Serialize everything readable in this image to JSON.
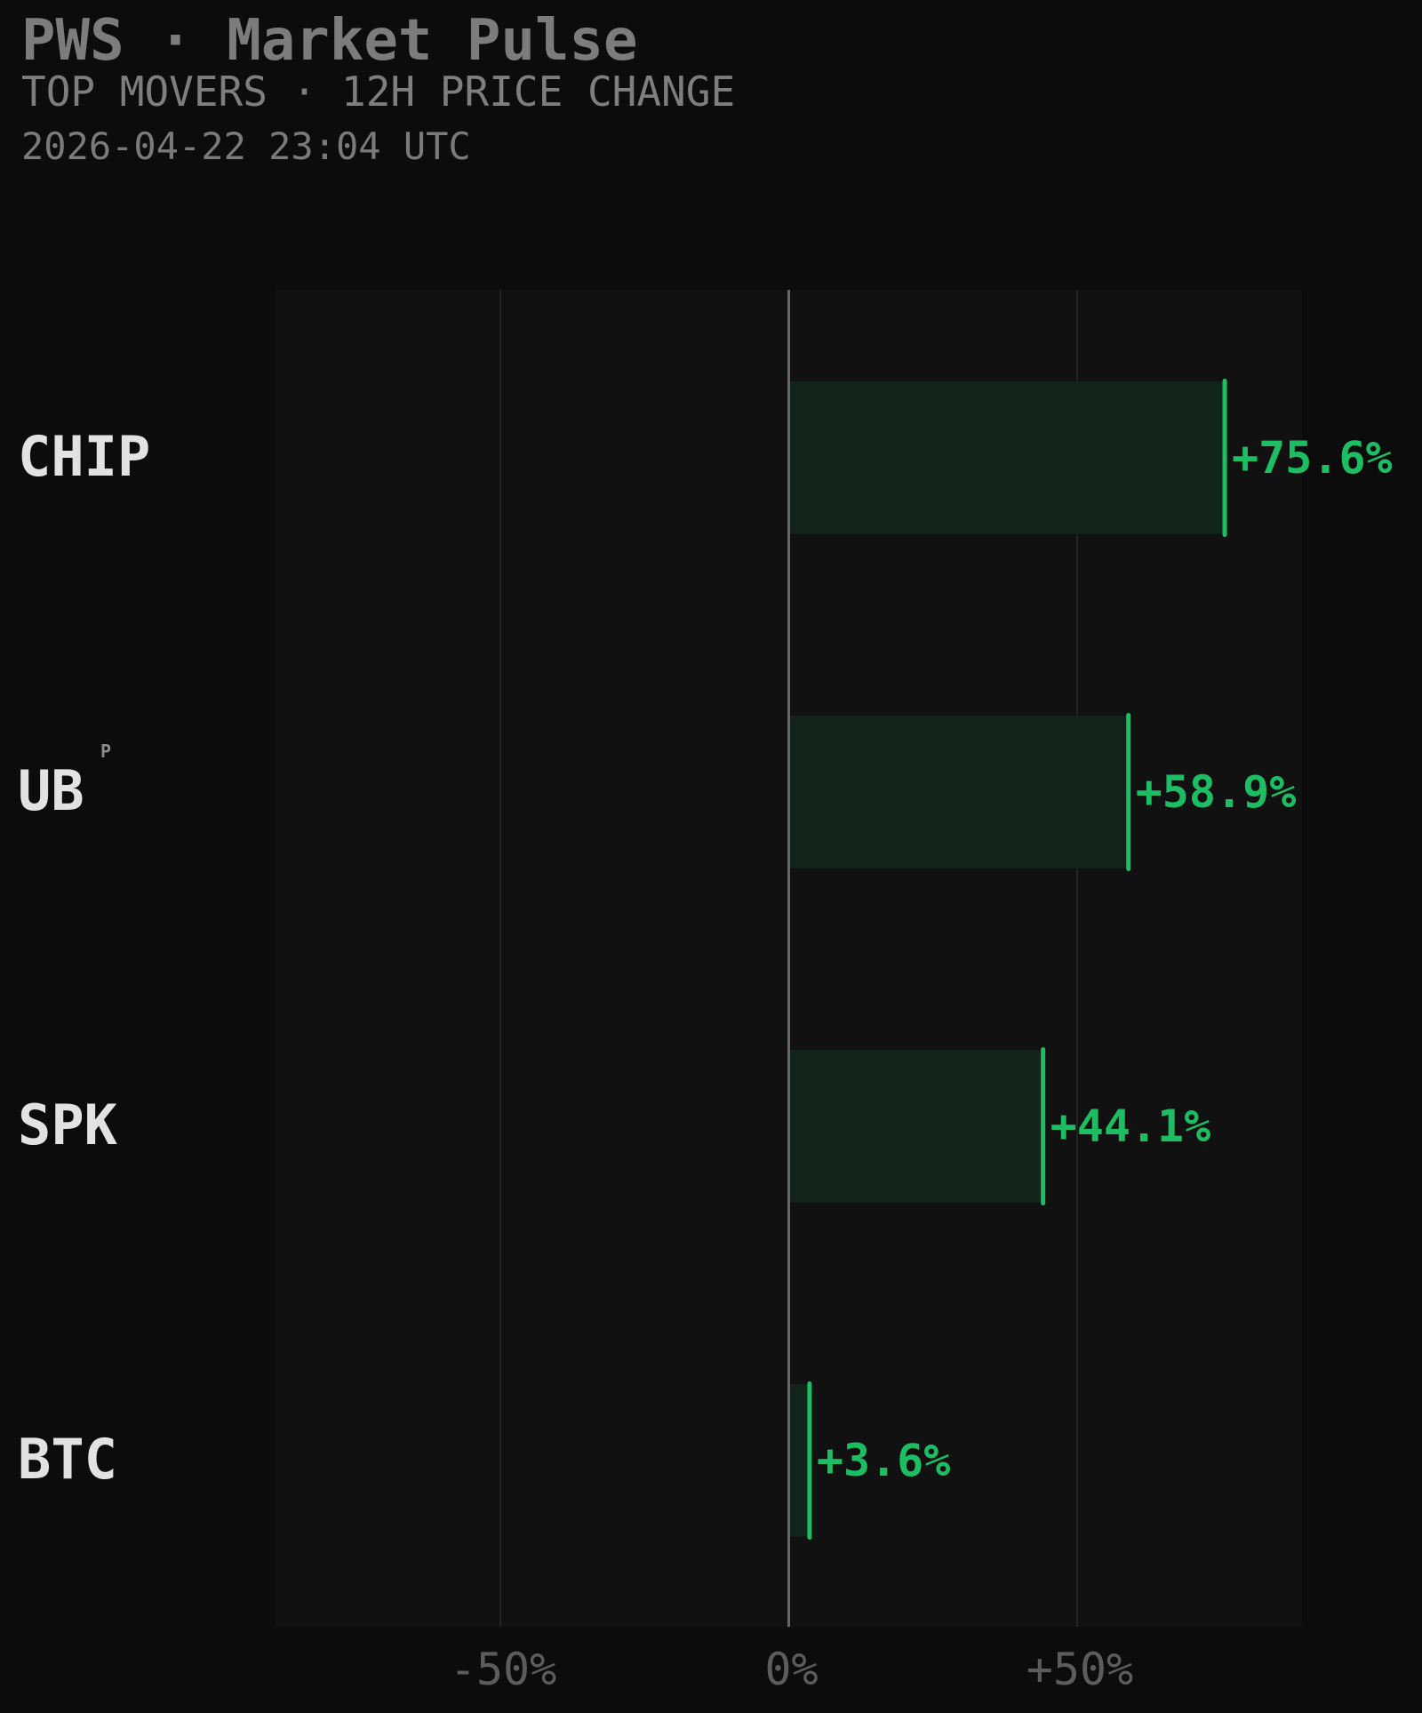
{
  "header": {
    "title": "PWS · Market Pulse",
    "subtitle": "TOP MOVERS · 12H PRICE CHANGE",
    "timestamp": "2026-04-22 23:04 UTC"
  },
  "colors": {
    "background": "#0c0c0c",
    "plot_background": "#111111",
    "positive": "#1dbe63",
    "bar_fill": "#12251a",
    "grid": "#242424",
    "zero_line": "#666666",
    "ticker_label": "#e2e2e2",
    "tick_label": "#5c5c5c"
  },
  "chart_data": {
    "type": "bar",
    "orientation": "horizontal",
    "categories": [
      "CHIP",
      "UB",
      "SPK",
      "BTC"
    ],
    "superscripts": [
      "",
      "P",
      "",
      ""
    ],
    "values": [
      75.6,
      58.9,
      44.1,
      3.6
    ],
    "value_labels": [
      "+75.6%",
      "+58.9%",
      "+44.1%",
      "+3.6%"
    ],
    "unit": "%",
    "xlim": [
      -89,
      89
    ],
    "xticks": [
      -50,
      0,
      50
    ],
    "xtick_labels": [
      "-50%",
      "0%",
      "+50%"
    ],
    "grid": true,
    "xlabel": "",
    "ylabel": ""
  }
}
